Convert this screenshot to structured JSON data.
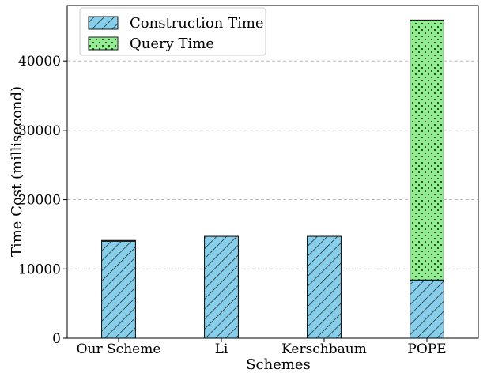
{
  "chart_data": {
    "type": "bar",
    "stacked": true,
    "title": "",
    "xlabel": "Schemes",
    "ylabel": "Time Cost (millisecond)",
    "categories": [
      "Our Scheme",
      "Li",
      "Kerschbaum",
      "POPE"
    ],
    "ylim": [
      0,
      48000
    ],
    "yticks": [
      0,
      10000,
      20000,
      30000,
      40000
    ],
    "ytick_labels": [
      "0",
      "10000",
      "20000",
      "30000",
      "40000"
    ],
    "grid": "y-dashed",
    "legend_position": "top-left",
    "series": [
      {
        "name": "Construction Time",
        "values": [
          14000,
          14700,
          14700,
          8400
        ],
        "color": "#87ceeb",
        "hatch": "diagonal"
      },
      {
        "name": "Query Time",
        "values": [
          100,
          0,
          0,
          37500
        ],
        "color": "#90ee90",
        "hatch": "dots"
      }
    ]
  }
}
